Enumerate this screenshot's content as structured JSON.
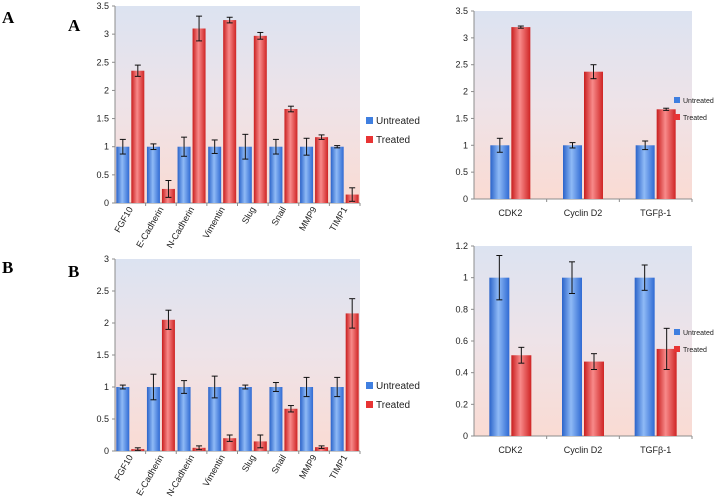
{
  "panels": {
    "top_outer": "A",
    "top_inner": "A",
    "bottom_outer": "B",
    "bottom_inner": "B"
  },
  "colors": {
    "untreated": "#3f7fe0",
    "treated": "#e83434",
    "bg_top": "#dde4f0",
    "bg_bottom": "#f9ddd6"
  },
  "chart_data": [
    {
      "id": "A-left",
      "type": "bar",
      "categories": [
        "FGF10",
        "E-Cadherin",
        "N-Cadherin",
        "Vimentin",
        "Slug",
        "Snail",
        "MMP9",
        "TIMP1"
      ],
      "series": [
        {
          "name": "Untreated",
          "values": [
            1.0,
            1.0,
            1.0,
            1.0,
            1.0,
            1.0,
            1.0,
            1.0
          ],
          "errors": [
            0.13,
            0.05,
            0.17,
            0.12,
            0.22,
            0.13,
            0.15,
            0.02
          ]
        },
        {
          "name": "Treated",
          "values": [
            2.35,
            0.25,
            3.1,
            3.25,
            2.97,
            1.67,
            1.17,
            0.15
          ],
          "errors": [
            0.1,
            0.15,
            0.22,
            0.05,
            0.06,
            0.05,
            0.04,
            0.12
          ]
        }
      ],
      "ylim": [
        0,
        3.5
      ],
      "yticks": [
        "0",
        "0.5",
        "1",
        "1.5",
        "2",
        "2.5",
        "3",
        "3.5"
      ],
      "legend": [
        "Untreated",
        "Treated"
      ]
    },
    {
      "id": "A-right",
      "type": "bar",
      "categories": [
        "CDK2",
        "Cyclin D2",
        "TGFβ-1"
      ],
      "series": [
        {
          "name": "Untreated",
          "values": [
            1.0,
            1.0,
            1.0
          ],
          "errors": [
            0.13,
            0.05,
            0.08
          ]
        },
        {
          "name": "Treated",
          "values": [
            3.2,
            2.37,
            1.67
          ],
          "errors": [
            0.02,
            0.13,
            0.02
          ]
        }
      ],
      "ylim": [
        0,
        3.5
      ],
      "yticks": [
        "0",
        "0.5",
        "1",
        "1.5",
        "2",
        "2.5",
        "3",
        "3.5"
      ],
      "legend": [
        "Untreated",
        "Treated"
      ]
    },
    {
      "id": "B-left",
      "type": "bar",
      "categories": [
        "FGF10",
        "E-Cadherin",
        "N-Cadherin",
        "Vimentin",
        "Slug",
        "Snail",
        "MMP9",
        "TIMP1"
      ],
      "series": [
        {
          "name": "Untreated",
          "values": [
            1.0,
            1.0,
            1.0,
            1.0,
            1.0,
            1.0,
            1.0,
            1.0
          ],
          "errors": [
            0.03,
            0.2,
            0.1,
            0.17,
            0.03,
            0.07,
            0.15,
            0.15
          ]
        },
        {
          "name": "Treated",
          "values": [
            0.03,
            2.05,
            0.05,
            0.2,
            0.15,
            0.66,
            0.06,
            2.15
          ],
          "errors": [
            0.02,
            0.15,
            0.03,
            0.05,
            0.1,
            0.05,
            0.02,
            0.23
          ]
        }
      ],
      "ylim": [
        0,
        3
      ],
      "yticks": [
        "0",
        "0.5",
        "1",
        "1.5",
        "2",
        "2.5",
        "3"
      ],
      "legend": [
        "Untreated",
        "Treated"
      ]
    },
    {
      "id": "B-right",
      "type": "bar",
      "categories": [
        "CDK2",
        "Cyclin D2",
        "TGFβ-1"
      ],
      "series": [
        {
          "name": "Untreated",
          "values": [
            1.0,
            1.0,
            1.0
          ],
          "errors": [
            0.14,
            0.1,
            0.08
          ]
        },
        {
          "name": "Treated",
          "values": [
            0.51,
            0.47,
            0.55
          ],
          "errors": [
            0.05,
            0.05,
            0.13
          ]
        }
      ],
      "ylim": [
        0,
        1.2
      ],
      "yticks": [
        "0",
        "0.2",
        "0.4",
        "0.6",
        "0.8",
        "1",
        "1.2"
      ],
      "legend": [
        "Untreated",
        "Treated"
      ]
    }
  ]
}
